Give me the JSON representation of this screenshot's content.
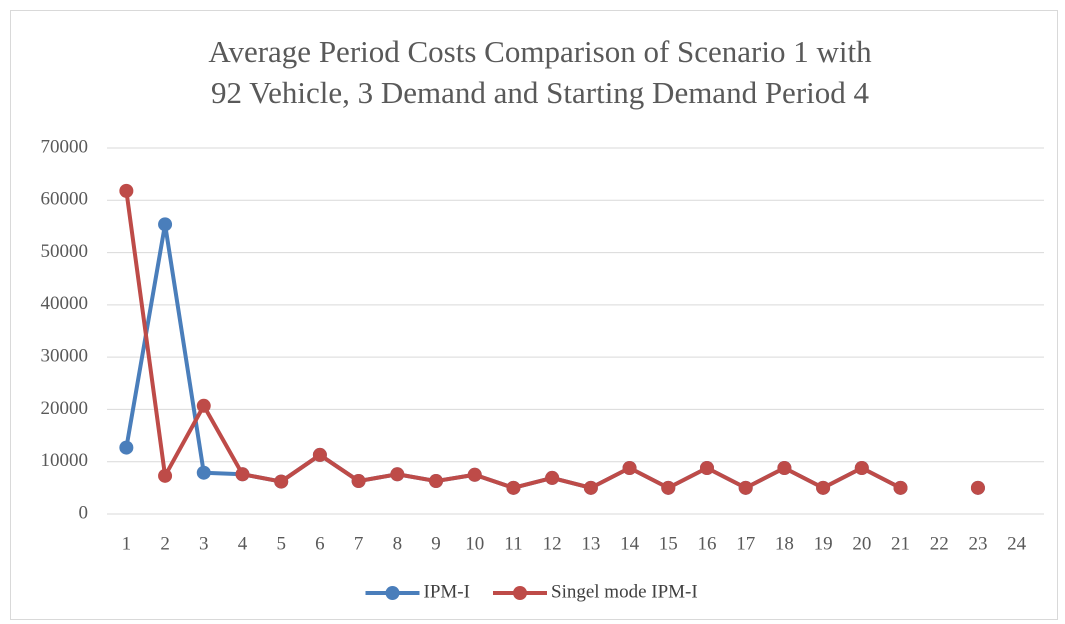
{
  "chart_data": {
    "type": "line",
    "title": [
      "Average Period Costs Comparison of Scenario 1 with",
      "92 Vehicle, 3 Demand and Starting Demand Period 4"
    ],
    "categories": [
      "1",
      "2",
      "3",
      "4",
      "5",
      "6",
      "7",
      "8",
      "9",
      "10",
      "11",
      "12",
      "13",
      "14",
      "15",
      "16",
      "17",
      "18",
      "19",
      "20",
      "21",
      "22",
      "23",
      "24"
    ],
    "series": [
      {
        "name": "IPM-I",
        "color": "#4a7ebb",
        "values": [
          12700,
          55400,
          7900,
          7600,
          6200,
          11300,
          6300,
          7600,
          6300,
          7500,
          5000,
          6900,
          5000,
          8800,
          5000,
          8800,
          5000,
          8800,
          5000,
          8800,
          5000,
          null,
          5000,
          null
        ]
      },
      {
        "name": "Singel mode IPM-I",
        "color": "#be4b48",
        "values": [
          61800,
          7300,
          20700,
          7600,
          6200,
          11300,
          6300,
          7600,
          6300,
          7500,
          5000,
          6900,
          5000,
          8800,
          5000,
          8800,
          5000,
          8800,
          5000,
          8800,
          5000,
          null,
          5000,
          null
        ]
      }
    ],
    "ylim": [
      0,
      70000
    ],
    "yticks": [
      0,
      10000,
      20000,
      30000,
      40000,
      50000,
      60000,
      70000
    ],
    "grid": true,
    "legend": "bottom"
  }
}
